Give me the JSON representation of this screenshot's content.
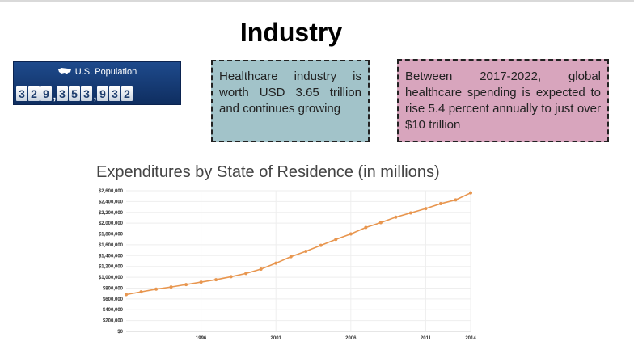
{
  "page": {
    "title": "Industry"
  },
  "population_widget": {
    "label": "U.S. Population",
    "icon": "us-map-icon",
    "groups": [
      [
        "3",
        "2",
        "9"
      ],
      [
        "3",
        "5",
        "3"
      ],
      [
        "9",
        "3",
        "2"
      ]
    ],
    "separator": ","
  },
  "info_boxes": {
    "teal": {
      "text": "Healthcare industry is worth USD 3.65 trillion and continues growing",
      "color": "#a2c3c9"
    },
    "pink": {
      "text": "Between 2017-2022, global healthcare spending is expected to rise 5.4 percent annually to just over $10 trillion",
      "color": "#d8a5bd"
    }
  },
  "chart_data": {
    "type": "line",
    "title": "Expenditures by State of Residence (in millions)",
    "xlabel": "",
    "ylabel": "",
    "x": [
      1991,
      1992,
      1993,
      1994,
      1995,
      1996,
      1997,
      1998,
      1999,
      2000,
      2001,
      2002,
      2003,
      2004,
      2005,
      2006,
      2007,
      2008,
      2009,
      2010,
      2011,
      2012,
      2013,
      2014
    ],
    "series": [
      {
        "name": "Expenditures",
        "values": [
          680000,
          730000,
          780000,
          820000,
          865000,
          910000,
          955000,
          1010000,
          1070000,
          1150000,
          1260000,
          1380000,
          1480000,
          1590000,
          1700000,
          1800000,
          1920000,
          2010000,
          2110000,
          2190000,
          2270000,
          2360000,
          2430000,
          2560000
        ],
        "color": "#e8964f"
      }
    ],
    "xticks": [
      1996,
      2001,
      2006,
      2011,
      2014
    ],
    "yticks": [
      {
        "v": 0,
        "label": "$0"
      },
      {
        "v": 200000,
        "label": "$200,000"
      },
      {
        "v": 400000,
        "label": "$400,000"
      },
      {
        "v": 600000,
        "label": "$600,000"
      },
      {
        "v": 800000,
        "label": "$800,000"
      },
      {
        "v": 1000000,
        "label": "$1,000,000"
      },
      {
        "v": 1200000,
        "label": "$1,200,000"
      },
      {
        "v": 1400000,
        "label": "$1,400,000"
      },
      {
        "v": 1600000,
        "label": "$1,600,000"
      },
      {
        "v": 1800000,
        "label": "$1,800,000"
      },
      {
        "v": 2000000,
        "label": "$2,000,000"
      },
      {
        "v": 2200000,
        "label": "$2,200,000"
      },
      {
        "v": 2400000,
        "label": "$2,400,000"
      },
      {
        "v": 2600000,
        "label": "$2,600,000"
      }
    ],
    "ylim": [
      0,
      2600000
    ],
    "xlim": [
      1991,
      2014
    ],
    "grid": true
  }
}
